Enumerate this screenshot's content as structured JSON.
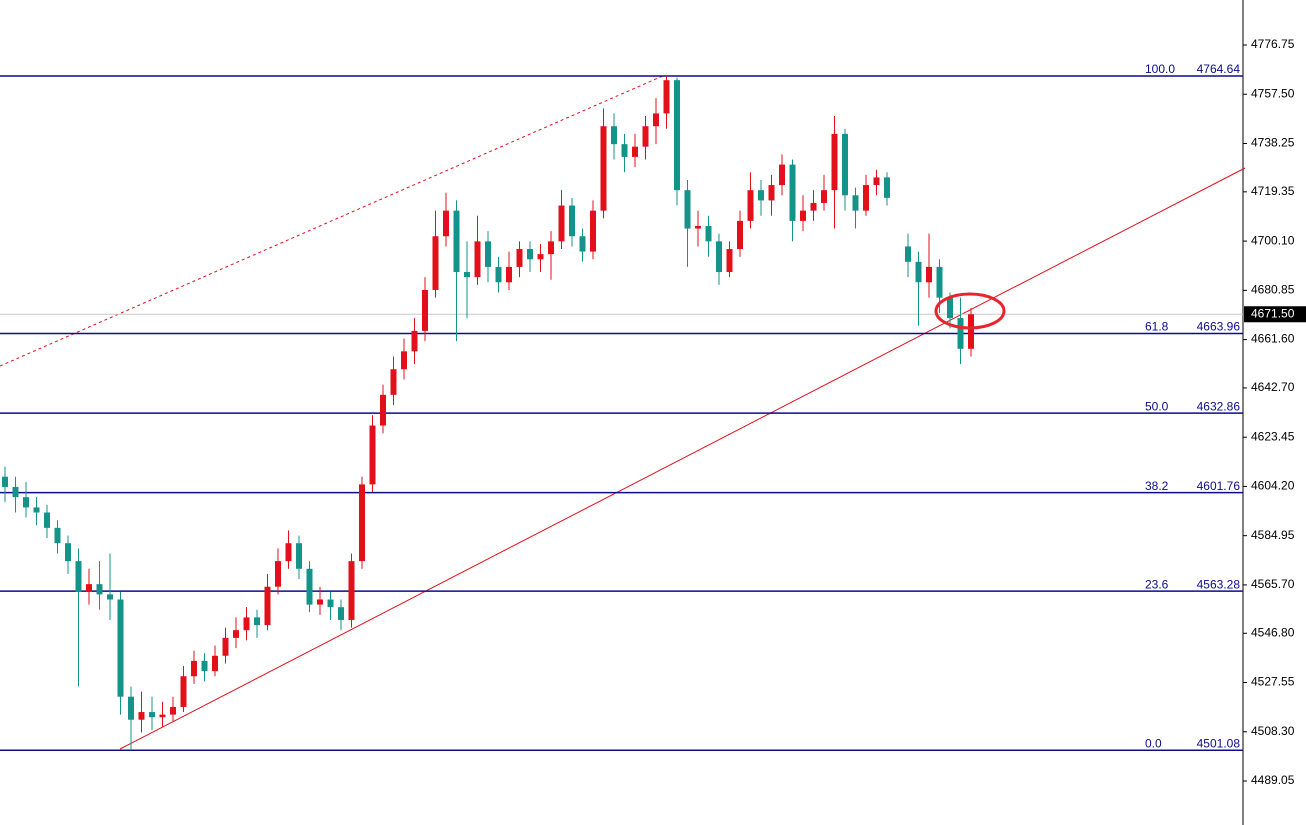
{
  "chart_data": {
    "type": "candlestick",
    "categories": [
      null,
      null,
      null,
      null,
      null,
      null,
      null,
      null,
      null,
      null,
      null,
      null,
      null,
      null,
      null,
      null,
      null,
      null,
      null,
      null,
      null,
      null,
      null,
      null,
      null,
      null,
      null,
      null,
      null,
      null,
      null,
      null,
      null,
      null,
      null,
      null,
      null,
      null,
      null,
      null,
      null,
      null,
      null,
      null,
      null,
      null,
      null,
      null,
      null,
      null,
      null,
      null,
      null,
      null,
      null,
      null,
      null,
      null,
      null,
      null,
      null,
      null,
      null,
      null,
      null,
      null,
      null,
      null,
      null,
      null,
      null,
      null,
      null,
      null,
      null,
      null,
      null,
      null,
      null,
      null,
      null,
      null,
      null,
      null,
      null,
      null,
      null,
      null,
      null,
      null,
      null,
      null,
      null
    ],
    "open": [
      4608,
      4604,
      4600,
      4596,
      4594,
      4588,
      4582,
      4575,
      4563,
      4566,
      4562,
      4560,
      4522,
      4513,
      4516,
      4514,
      4515,
      4518,
      4530,
      4536,
      4532,
      4538,
      4545,
      4548,
      4553,
      4550,
      4565,
      4575,
      4582,
      4572,
      4558,
      4560,
      4557,
      4552,
      4575,
      4605,
      4628,
      4640,
      4650,
      4657,
      4665,
      4681,
      4702,
      4712,
      4688,
      4686,
      4700,
      4690,
      4684,
      4690,
      4697,
      4693,
      4695,
      4700,
      4714,
      4702,
      4696,
      4712,
      4745,
      4738,
      4733,
      4737,
      4745,
      4750,
      4763,
      4720,
      4705,
      4706,
      4700,
      4688,
      4697,
      4708,
      4720,
      4716,
      4722,
      4730,
      4708,
      4712,
      4715,
      4720,
      4742,
      4718,
      4712,
      4722,
      4725,
      null,
      4698,
      4692,
      4684,
      4690,
      4678,
      4670,
      4658
    ],
    "high": [
      4612,
      4608,
      4606,
      4600,
      4597,
      4591,
      4585,
      4580,
      4572,
      4575,
      4578,
      4563,
      4526,
      4524,
      4522,
      4520,
      4522,
      4534,
      4540,
      4539,
      4542,
      4549,
      4553,
      4557,
      4556,
      4570,
      4580,
      4587,
      4585,
      4575,
      4565,
      4563,
      4560,
      4578,
      4608,
      4632,
      4644,
      4655,
      4662,
      4670,
      4686,
      4712,
      4719,
      4716,
      4700,
      4710,
      4704,
      4694,
      4696,
      4700,
      4700,
      4699,
      4704,
      4720,
      4717,
      4705,
      4716,
      4752,
      4750,
      4742,
      4742,
      4749,
      4756,
      4764.64,
      4764,
      4724,
      4712,
      4710,
      4703,
      4700,
      4712,
      4727,
      4724,
      4726,
      4734,
      4732,
      4718,
      4720,
      4726,
      4749,
      4744,
      4721,
      4726,
      4728,
      4727,
      null,
      4703,
      4696,
      4703,
      4693,
      4680,
      4678,
      4674
    ],
    "low": [
      4598,
      4594,
      4592,
      4589,
      4584,
      4578,
      4570,
      4526,
      4558,
      4556,
      4552,
      4515,
      4501.08,
      4508,
      4509,
      4510,
      4512,
      4516,
      4527,
      4528,
      4530,
      4535,
      4541,
      4544,
      4545,
      4548,
      4562,
      4572,
      4568,
      4555,
      4554,
      4552,
      4548,
      4549,
      4572,
      4602,
      4625,
      4636,
      4646,
      4652,
      4661,
      4678,
      4698,
      4661,
      4670,
      4683,
      4684,
      4680,
      4681,
      4686,
      4688,
      4688,
      4685,
      4697,
      4698,
      4692,
      4693,
      4709,
      4732,
      4727,
      4729,
      4732,
      4738,
      4744,
      4714,
      4690,
      4698,
      4694,
      4683,
      4686,
      4694,
      4705,
      4710,
      4710,
      4718,
      4700,
      4704,
      4708,
      4712,
      4705,
      4712,
      4705,
      4710,
      4718,
      4714,
      null,
      4686,
      4667,
      4678,
      4672,
      4666,
      4652,
      4655
    ],
    "close": [
      4604,
      4600,
      4596,
      4594,
      4588,
      4582,
      4575,
      4563,
      4566,
      4562,
      4560,
      4522,
      4513,
      4516,
      4514,
      4515,
      4518,
      4530,
      4536,
      4532,
      4538,
      4545,
      4548,
      4553,
      4550,
      4565,
      4575,
      4582,
      4572,
      4558,
      4560,
      4557,
      4552,
      4575,
      4605,
      4628,
      4640,
      4650,
      4657,
      4665,
      4681,
      4702,
      4712,
      4688,
      4686,
      4700,
      4690,
      4684,
      4690,
      4697,
      4693,
      4695,
      4700,
      4714,
      4702,
      4696,
      4712,
      4745,
      4738,
      4733,
      4737,
      4745,
      4750,
      4763,
      4720,
      4705,
      4706,
      4700,
      4688,
      4697,
      4708,
      4720,
      4716,
      4722,
      4730,
      4708,
      4712,
      4715,
      4720,
      4742,
      4718,
      4712,
      4722,
      4725,
      4717,
      null,
      4692,
      4684,
      4690,
      4678,
      4670,
      4658,
      4671.5
    ],
    "up_color": "#e3101c",
    "down_color": "#14938a",
    "ylim": [
      4471.85,
      4794.34
    ],
    "yticks": [
      4776.75,
      {
        "value": 4757.5,
        "label": "4757.50"
      },
      4738.25,
      4719.35,
      {
        "value": 4700.1,
        "label": "4700.10"
      },
      4680.85,
      {
        "value": 4661.6,
        "label": "4661.60"
      },
      {
        "value": 4642.7,
        "label": "4642.70"
      },
      4623.45,
      {
        "value": 4604.2,
        "label": "4604.20"
      },
      4584.95,
      {
        "value": 4565.7,
        "label": "4565.70"
      },
      {
        "value": 4546.8,
        "label": "4546.80"
      },
      4527.55,
      {
        "value": 4508.3,
        "label": "4508.30"
      },
      4489.05
    ],
    "fib_color": "#0c0c8c",
    "fib_levels": [
      {
        "level": {
          "value": 100,
          "label": "100.0"
        },
        "price": 4764.64
      },
      {
        "level": 61.8,
        "price": 4663.96
      },
      {
        "level": {
          "value": 50,
          "label": "50.0"
        },
        "price": 4632.86
      },
      {
        "level": 38.2,
        "price": 4601.76
      },
      {
        "level": 23.6,
        "price": 4563.28
      },
      {
        "level": {
          "value": 0,
          "label": "0.0"
        },
        "price": 4501.08
      }
    ],
    "last_price": {
      "value": 4671.5,
      "label": "4671.50"
    }
  }
}
